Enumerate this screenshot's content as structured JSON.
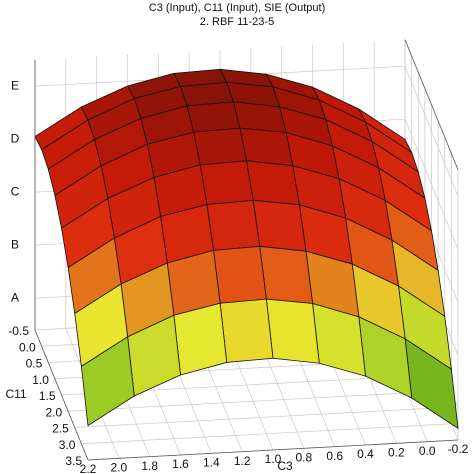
{
  "chart_data": {
    "type": "surface3d",
    "title": "C3 (Input), C11 (Input), SIE (Output)",
    "subtitle": "2. RBF 11-23-5",
    "xlabel": "C3",
    "ylabel": "C11",
    "xlim": [
      2.2,
      -0.2
    ],
    "ylim": [
      -0.5,
      3.5
    ],
    "zlim": [
      0.4,
      5.5
    ],
    "xticks": [
      2.2,
      {
        "value": 2,
        "label": "2.0"
      },
      1.8,
      1.6,
      1.4,
      1.2,
      {
        "value": 1,
        "label": "1.0"
      },
      0.8,
      0.6,
      0.4,
      0.2,
      {
        "value": 0,
        "label": "0.0"
      },
      -0.2
    ],
    "yticks": [
      -0.5,
      {
        "value": 0,
        "label": "0.0"
      },
      0.5,
      {
        "value": 1,
        "label": "1.0"
      },
      1.5,
      {
        "value": 2,
        "label": "2.0"
      },
      2.5,
      {
        "value": 3,
        "label": "3.0"
      },
      3.5
    ],
    "zticks": [
      {
        "value": 1,
        "label": "A"
      },
      {
        "value": 2,
        "label": "B"
      },
      {
        "value": 3,
        "label": "C"
      },
      {
        "value": 4,
        "label": "D"
      },
      {
        "value": 5,
        "label": "E"
      }
    ],
    "grid": true,
    "colorscale": [
      "#1f4a10",
      "#7fc020",
      "#e8e830",
      "#e03010",
      "#c01808",
      "#6a1008"
    ],
    "x": [
      2.2,
      1.9,
      1.6,
      1.3,
      1.0,
      0.7,
      0.4,
      0.1,
      -0.2
    ],
    "y": [
      -0.5,
      0,
      0.5,
      1,
      1.5,
      2,
      2.5,
      3,
      3.5
    ],
    "z": [
      [
        4.05,
        4.56,
        4.91,
        5.1,
        5.13,
        4.99,
        4.7,
        4.24,
        3.62
      ],
      [
        4.11,
        4.62,
        4.98,
        5.16,
        5.19,
        5.06,
        4.76,
        4.3,
        3.68
      ],
      [
        4.05,
        4.56,
        4.91,
        5.1,
        5.13,
        4.99,
        4.7,
        4.24,
        3.62
      ],
      [
        3.86,
        4.37,
        4.73,
        4.91,
        4.94,
        4.81,
        4.51,
        4.05,
        3.43
      ],
      [
        3.55,
        4.06,
        4.41,
        4.6,
        4.63,
        4.49,
        4.2,
        3.74,
        3.12
      ],
      [
        3.11,
        3.62,
        3.98,
        4.16,
        4.19,
        4.06,
        3.76,
        3.3,
        2.68
      ],
      [
        2.55,
        3.06,
        3.41,
        3.6,
        3.63,
        3.49,
        3.2,
        2.74,
        2.12
      ],
      [
        1.86,
        2.37,
        2.73,
        2.91,
        2.94,
        2.81,
        2.51,
        2.05,
        1.43
      ],
      [
        1.05,
        1.56,
        1.91,
        2.1,
        2.13,
        1.99,
        1.7,
        1.24,
        0.62
      ]
    ]
  }
}
